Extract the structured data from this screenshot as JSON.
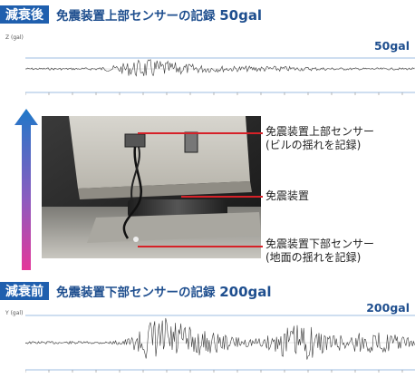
{
  "top": {
    "badge": "減衰後",
    "title": "免震装置上部センサーの記録",
    "value": "50gal",
    "peak": "50gal",
    "axis_unit": "Z (gal)"
  },
  "bottom": {
    "badge": "減衰前",
    "title": "免震装置下部センサーの記録",
    "value": "200gal",
    "peak": "200gal",
    "axis_unit": "Y (gal)"
  },
  "labels": {
    "upper_sensor_line1": "免震装置上部センサー",
    "upper_sensor_line2": "(ビルの揺れを記録)",
    "device": "免震装置",
    "lower_sensor_line1": "免震装置下部センサー",
    "lower_sensor_line2": "(地面の揺れを記録)"
  },
  "colors": {
    "header_blue": "#1f5fae",
    "callout_red": "#d62128",
    "arrow_top": "#1f78c8",
    "arrow_bottom": "#e4379a"
  }
}
